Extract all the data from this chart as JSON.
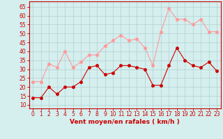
{
  "hours": [
    0,
    1,
    2,
    3,
    4,
    5,
    6,
    7,
    8,
    9,
    10,
    11,
    12,
    13,
    14,
    15,
    16,
    17,
    18,
    19,
    20,
    21,
    22,
    23
  ],
  "wind_avg": [
    14,
    14,
    20,
    16,
    20,
    20,
    23,
    31,
    32,
    27,
    28,
    32,
    32,
    31,
    30,
    21,
    21,
    32,
    42,
    35,
    32,
    31,
    34,
    29
  ],
  "wind_gust": [
    23,
    23,
    33,
    31,
    40,
    31,
    34,
    38,
    38,
    43,
    46,
    49,
    46,
    47,
    42,
    32,
    51,
    64,
    58,
    58,
    55,
    58,
    51,
    51
  ],
  "bg_color": "#d5eeee",
  "grid_color": "#b0d0d0",
  "avg_color": "#cc0000",
  "gust_color": "#ff9999",
  "xlabel": "Vent moyen/en rafales ( km/h )",
  "xlabel_color": "#cc0000",
  "ylabel_ticks": [
    10,
    15,
    20,
    25,
    30,
    35,
    40,
    45,
    50,
    55,
    60,
    65
  ],
  "ylim": [
    8,
    68
  ],
  "xlim": [
    -0.5,
    23.5
  ],
  "marker_size": 2.5,
  "linewidth": 0.8,
  "tick_fontsize": 5.5,
  "xlabel_fontsize": 6.5
}
